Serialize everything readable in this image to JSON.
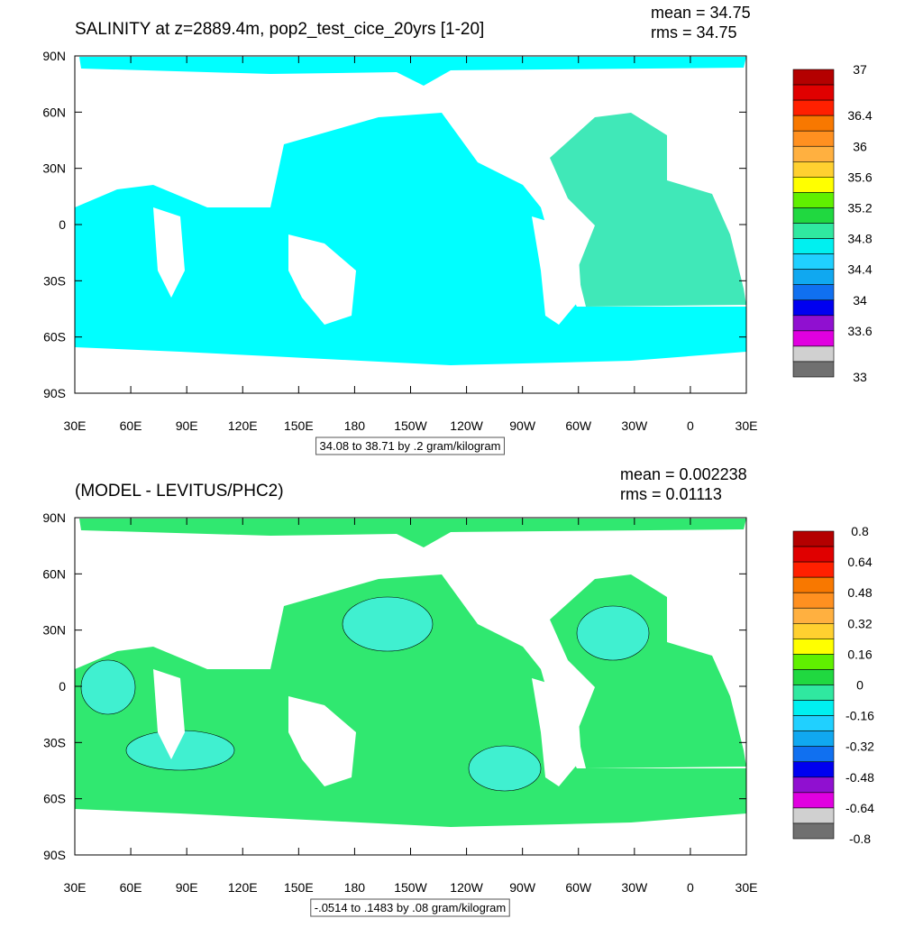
{
  "panels": [
    {
      "title": "SALINITY at z=2889.4m, pop2_test_cice_20yrs [1-20]",
      "mean": "mean = 34.75",
      "rms": "rms = 34.75",
      "lat_labels": [
        "90N",
        "60N",
        "30N",
        "0",
        "30S",
        "60S",
        "90S"
      ],
      "lon_labels": [
        "30E",
        "60E",
        "90E",
        "120E",
        "150E",
        "180",
        "150W",
        "120W",
        "90W",
        "60W",
        "30W",
        "0",
        "30E"
      ],
      "info": "34.08 to 38.71 by .2 gram/kilogram",
      "colorbar": {
        "labels": [
          "37",
          "36.4",
          "36",
          "35.6",
          "35.2",
          "34.8",
          "34.4",
          "34",
          "33.6",
          "33"
        ],
        "colors": [
          "#b40000",
          "#e00000",
          "#ff2000",
          "#f87800",
          "#ff9020",
          "#ffb040",
          "#ffd030",
          "#ffff00",
          "#60f000",
          "#20d840",
          "#30e8a0",
          "#00f0f0",
          "#20d0ff",
          "#10a8f0",
          "#1070f0",
          "#0000f0",
          "#9010d0",
          "#e000e0",
          "#d0d0d0",
          "#707070"
        ]
      }
    },
    {
      "title": "(MODEL - LEVITUS/PHC2)",
      "mean": "mean = 0.002238",
      "rms": "rms = 0.01113",
      "lat_labels": [
        "90N",
        "60N",
        "30N",
        "0",
        "30S",
        "60S",
        "90S"
      ],
      "lon_labels": [
        "30E",
        "60E",
        "90E",
        "120E",
        "150E",
        "180",
        "150W",
        "120W",
        "90W",
        "60W",
        "30W",
        "0",
        "30E"
      ],
      "info": "-.0514 to .1483 by .08 gram/kilogram",
      "colorbar": {
        "labels": [
          "0.8",
          "0.64",
          "0.48",
          "0.32",
          "0.16",
          "0",
          "-0.16",
          "-0.32",
          "-0.48",
          "-0.64",
          "-0.8"
        ],
        "colors": [
          "#b40000",
          "#e00000",
          "#ff2000",
          "#f87800",
          "#ff9020",
          "#ffb040",
          "#ffd030",
          "#ffff00",
          "#60f000",
          "#20d840",
          "#30e8a0",
          "#00f0f0",
          "#20d0ff",
          "#10a8f0",
          "#1070f0",
          "#0000f0",
          "#9010d0",
          "#e000e0",
          "#d0d0d0",
          "#707070"
        ]
      }
    }
  ]
}
